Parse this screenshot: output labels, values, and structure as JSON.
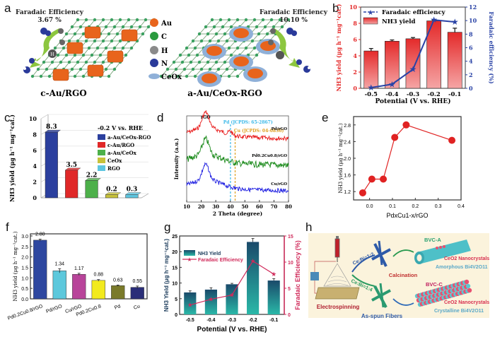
{
  "panel_labels": {
    "a": "a",
    "b": "b",
    "c": "c",
    "d": "d",
    "e": "e",
    "f": "f",
    "g": "g",
    "h": "h"
  },
  "panel_a": {
    "left": {
      "title": "Faradaic Efficiency",
      "value": "3.67 %",
      "caption": "c-Au/RGO"
    },
    "right": {
      "title": "Faradaic Efficiency",
      "value": "10.10 %",
      "caption": "a-Au/CeOx-RGO"
    },
    "legend": [
      {
        "label": "Au",
        "color": "#e8641c"
      },
      {
        "label": "C",
        "color": "#2a9a3e"
      },
      {
        "label": "H",
        "color": "#8a8a8a"
      },
      {
        "label": "N",
        "color": "#2a3a9a"
      },
      {
        "label": "CeOx",
        "color": "#8fb0d8"
      }
    ],
    "atom_H_label": "H"
  },
  "chart_data": [
    {
      "id": "b",
      "type": "bar",
      "categories": [
        "-0.5",
        "-0.4",
        "-0.3",
        "-0.2",
        "-0.1"
      ],
      "series": [
        {
          "name": "NH3 yield",
          "kind": "bar",
          "axis": "left",
          "values": [
            4.6,
            5.8,
            6.1,
            8.3,
            6.9
          ],
          "errors": [
            0.3,
            0.15,
            0.15,
            0.1,
            0.5
          ],
          "color": "#e42a2a"
        },
        {
          "name": "Faradaic efficiency",
          "kind": "line",
          "axis": "right",
          "values": [
            0.1,
            0.6,
            2.8,
            10.1,
            9.8
          ],
          "color": "#2a43a6"
        }
      ],
      "xlabel": "Potential (V vs. RHE)",
      "ylabel": "NH3 yield (μg h⁻¹ mg⁻¹cat.)",
      "y2label": "Faradaic efficiency (%)",
      "ylim": [
        0,
        10
      ],
      "y2lim": [
        0,
        12
      ],
      "yticks": [
        "0",
        "2",
        "4",
        "6",
        "8",
        "10"
      ],
      "y2ticks": [
        "0",
        "2",
        "4",
        "6",
        "8",
        "10",
        "12"
      ],
      "legend_position": "top-left"
    },
    {
      "id": "c",
      "type": "bar",
      "title": "-0.2 V vs. RHE",
      "categories": [
        "a-Au/CeOx-RGO",
        "c-Au/RGO",
        "a-Au/CeOx",
        "CeOx",
        "RGO"
      ],
      "values": [
        8.3,
        3.5,
        2.2,
        0.2,
        0.3
      ],
      "data_labels": [
        "8.3",
        "3.5",
        "2.2",
        "0.2",
        "0.3"
      ],
      "colors": [
        "#2b3f9e",
        "#e02828",
        "#4db04a",
        "#c8c23a",
        "#5ec6e0"
      ],
      "ylabel": "NH3 yield (μg h⁻¹ mg⁻¹cat.)",
      "ylim": [
        0,
        10
      ],
      "yticks": [
        "0",
        "2",
        "4",
        "6",
        "8",
        "10"
      ],
      "legend_position": "top-right"
    },
    {
      "id": "d",
      "type": "line",
      "xlabel": "2 Theta (degree)",
      "ylabel": "Intensity (a.u.)",
      "xlim": [
        10,
        80
      ],
      "xticks": [
        "10",
        "20",
        "30",
        "40",
        "50",
        "60",
        "70",
        "80"
      ],
      "annotations": [
        "rGO",
        "Pd (JCPDS: 65-2867)",
        "Cu (JCPDS: 04-0836)"
      ],
      "reference_lines": [
        {
          "label": "Pd (JCPDS: 65-2867)",
          "x": 40.1,
          "color": "#3ab8e8"
        },
        {
          "label": "Cu (JCPDS: 04-0836)",
          "x": 43.3,
          "color": "#e0a020"
        }
      ],
      "series": [
        {
          "name": "Pd/rGO",
          "color": "#e81818",
          "peak_x": 23,
          "offset": 2.0
        },
        {
          "name": "Pd0.2Cu0.8/rGO",
          "color": "#1a8a1a",
          "peak_x": 23,
          "offset": 1.0
        },
        {
          "name": "Cu/rGO",
          "color": "#1818e0",
          "peak_x": 23,
          "offset": 0.0
        }
      ]
    },
    {
      "id": "e",
      "type": "line",
      "x": [
        -0.03,
        0.01,
        0.06,
        0.11,
        0.16,
        0.36
      ],
      "y": [
        1.17,
        1.5,
        1.5,
        2.5,
        2.8,
        2.43
      ],
      "xlabel": "PdxCu1-x/rGO",
      "ylabel": "NH3 yield (μg h⁻¹ mg⁻¹cat.)",
      "xlim": [
        -0.07,
        0.4
      ],
      "ylim": [
        1.0,
        3.0
      ],
      "xticks": [
        "0.0",
        "0.1",
        "0.2",
        "0.3",
        "0.4"
      ],
      "yticks": [
        "1.2",
        "1.6",
        "2.0",
        "2.4",
        "2.8"
      ],
      "color": "#e02222"
    },
    {
      "id": "f",
      "type": "bar",
      "categories": [
        "Pd0.2Cu0.8/rGO",
        "Pd/rGO",
        "Cu/rGO",
        "Pd0.2Cu0.8",
        "Pd",
        "Cu"
      ],
      "values": [
        2.8,
        1.34,
        1.17,
        0.88,
        0.63,
        0.55
      ],
      "errors": [
        0.05,
        0.1,
        0.05,
        0.04,
        0.03,
        0.06
      ],
      "data_labels": [
        "2.80",
        "1.34",
        "1.17",
        "0.88",
        "0.63",
        "0.55"
      ],
      "colors": [
        "#2e47a0",
        "#5cc8dc",
        "#b8449a",
        "#f2ea1e",
        "#7a7a2a",
        "#2a2e78"
      ],
      "ylabel": "NH3 yield (μg h⁻¹ mg⁻¹cat.)",
      "ylim": [
        0,
        3.1
      ],
      "yticks": [
        "0.0",
        "0.5",
        "1.0",
        "1.5",
        "2.0",
        "2.5",
        "3.0"
      ]
    },
    {
      "id": "g",
      "type": "bar",
      "categories": [
        "-0.5",
        "-0.4",
        "-0.3",
        "-0.2",
        "-0.1"
      ],
      "series": [
        {
          "name": "NH3 Yield",
          "kind": "bar",
          "axis": "left",
          "values": [
            7.0,
            7.9,
            9.6,
            23.1,
            10.8
          ],
          "errors": [
            0.5,
            0.6,
            0.3,
            1.1,
            0.6
          ],
          "color": "#1d7a86"
        },
        {
          "name": "Faradaic Efficiency",
          "kind": "line",
          "axis": "right",
          "values": [
            1.8,
            2.9,
            3.7,
            10.2,
            7.7
          ],
          "color": "#d02a5a"
        }
      ],
      "xlabel": "Potential (V vs. RHE)",
      "ylabel": "NH3 Yield (μg h⁻¹ mg⁻¹cat.)",
      "y2label": "Faradaic Efficiency (%)",
      "ylim": [
        0,
        25
      ],
      "y2lim": [
        0,
        15
      ],
      "yticks": [
        "0",
        "5",
        "10",
        "15",
        "20",
        "25"
      ],
      "y2ticks": [
        "0",
        "5",
        "10",
        "15"
      ],
      "legend_position": "top-left"
    }
  ],
  "panel_h": {
    "labels": {
      "ratio_a": "Ce:Bi=1:2",
      "ratio_c": "Ce:Bi=1:4",
      "calcination": "Calcination",
      "electrospinning": "Electrospinning",
      "as_spun": "As-spun Fibers",
      "bvc_a": "BVC-A",
      "bvc_c": "BVC-C",
      "ceo2_a": "CeO2 Nanocrystals",
      "ceo2_c": "CeO2 Nanocrystals",
      "amorphous": "Amorphous Bi4V2O11",
      "crystalline": "Crystalline Bi4V2O11"
    }
  }
}
